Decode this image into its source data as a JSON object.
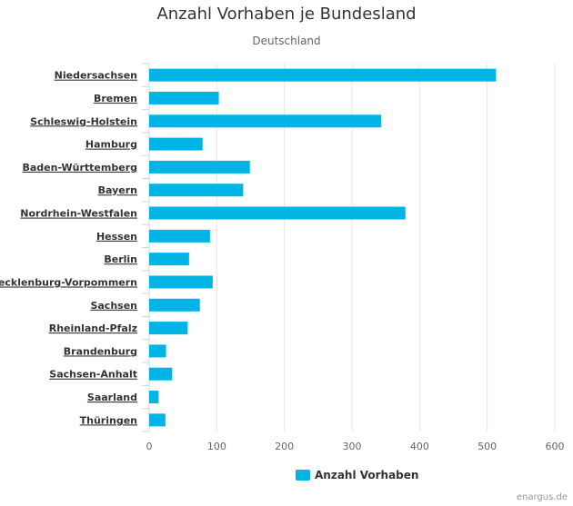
{
  "chart_data": {
    "type": "bar",
    "orientation": "horizontal",
    "title": "Anzahl Vorhaben je Bundesland",
    "subtitle": "Deutschland",
    "categories": [
      "Niedersachsen",
      "Bremen",
      "Schleswig-Holstein",
      "Hamburg",
      "Baden-Württemberg",
      "Bayern",
      "Nordrhein-Westfalen",
      "Hessen",
      "Berlin",
      "Mecklenburg-Vorpommern",
      "Sachsen",
      "Rheinland-Pfalz",
      "Brandenburg",
      "Sachsen-Anhalt",
      "Saarland",
      "Thüringen"
    ],
    "series": [
      {
        "name": "Anzahl Vorhaben",
        "color": "#00b4e6",
        "values": [
          513,
          103,
          343,
          79,
          149,
          139,
          379,
          90,
          59,
          94,
          75,
          57,
          25,
          34,
          14,
          24
        ]
      }
    ],
    "xlim": [
      0,
      600
    ],
    "xticks": [
      0,
      100,
      200,
      300,
      400,
      500,
      600
    ],
    "grid": true,
    "legend_position": "bottom-center"
  },
  "credit": "enargus.de"
}
